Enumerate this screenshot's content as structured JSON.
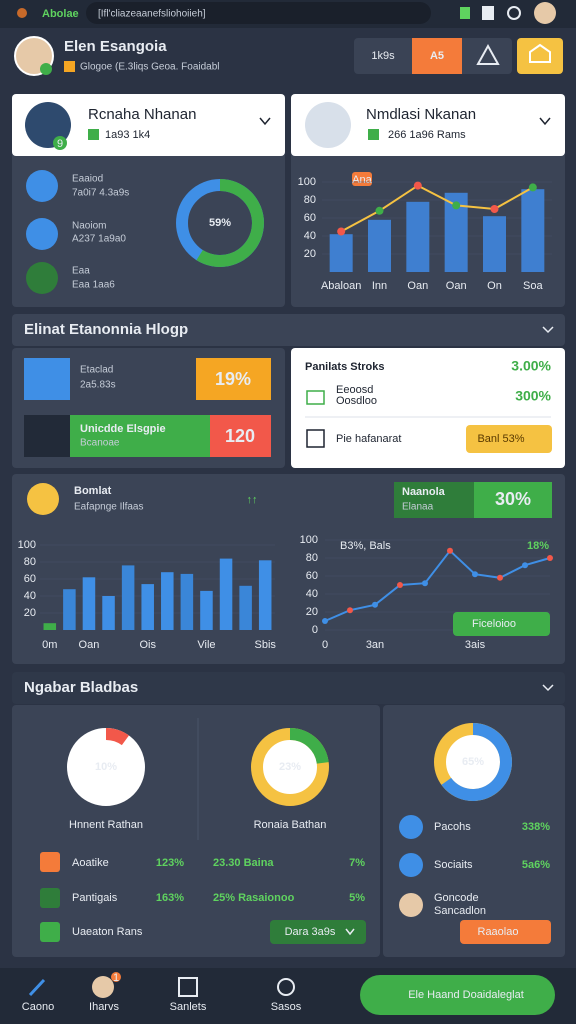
{
  "status_bar": {
    "app": "Abolae",
    "search": "[Ifl'cliazeaanefsliohoiieh]"
  },
  "header": {
    "name": "Elen Esangoia",
    "subtitle": "Glogoe (E.3liqs Geoa. Foaidabl",
    "buttons": [
      "1k9s",
      "A5"
    ]
  },
  "profile_cards": [
    {
      "name": "Rcnaha Nhanan",
      "meta": "1a93 1k4",
      "badge": "9",
      "items": [
        {
          "title": "Eaaiod",
          "detail": "7a0i7 4.3a9s"
        },
        {
          "title": "Naoiom",
          "detail": "A237 1a9a0"
        },
        {
          "title": "Eaa",
          "detail": "Eaa 1aa6"
        }
      ],
      "donut": {
        "value": 59,
        "label": "59%"
      }
    },
    {
      "name": "Nmdlasi Nkanan",
      "meta": "266 1a96 Rams",
      "chart": {
        "badge": "Ana",
        "categories": [
          "Abaloan",
          "Inn",
          "Oan",
          "Oan",
          "On",
          "Soa"
        ],
        "bars": [
          42,
          58,
          78,
          88,
          62,
          92
        ],
        "line": [
          45,
          68,
          96,
          74,
          70,
          94
        ],
        "ylim": [
          0,
          100
        ],
        "yticks": [
          20,
          40,
          60,
          80,
          100
        ]
      }
    }
  ],
  "section_1": {
    "title": "Elinat Etanonnia Hlogp",
    "tiles": [
      {
        "title": "Etaclad",
        "detail": "2a5.83s",
        "value": "19%"
      },
      {
        "title": "Unicdde Elsgpie",
        "detail": "Bcanoae",
        "value": "120"
      }
    ],
    "stocks": {
      "title": "Panilats Stroks",
      "title_value": "3.00%",
      "item": "Eeoosd",
      "item_detail": "Oosdloo",
      "item_value": "300%",
      "footer": "Pie hafanarat",
      "button": "Banl 53%"
    }
  },
  "activity": {
    "name": "Bomlat",
    "subtitle": "Eafapnge Ilfaas",
    "trend": "↑↑",
    "highlight": {
      "title": "Naanola",
      "detail": "Elanaa",
      "value": "30%"
    },
    "bar_chart": {
      "categories": [
        "0m",
        null,
        "Oan",
        null,
        null,
        "Ois",
        null,
        null,
        "Vile",
        null,
        null,
        "Sbis"
      ],
      "values": [
        8,
        48,
        62,
        40,
        76,
        54,
        68,
        66,
        46,
        84,
        52,
        82
      ],
      "ylim": [
        0,
        100
      ],
      "yticks": [
        20,
        40,
        60,
        80,
        100
      ]
    },
    "line_chart": {
      "label": "B3%, Bals",
      "end_label": "18%",
      "categories": [
        "0",
        null,
        "3an",
        null,
        null,
        null,
        "3ais",
        null,
        null,
        null
      ],
      "values": [
        10,
        22,
        28,
        50,
        52,
        88,
        62,
        58,
        72,
        80
      ],
      "ylim": [
        0,
        100
      ],
      "yticks": [
        0,
        20,
        40,
        60,
        80,
        100
      ],
      "button": "Ficeloioo"
    }
  },
  "section_2": {
    "title": "Ngabar Bladbas",
    "donuts": [
      {
        "value": 10,
        "label": "10%",
        "caption": "Hnnent Rathan"
      },
      {
        "value": 23,
        "label": "23%",
        "caption": "Ronaia Bathan"
      }
    ],
    "rows": [
      {
        "name": "Aoatike",
        "value": "123%"
      },
      {
        "name": "Pantigais",
        "value": "163%"
      },
      {
        "name": "Uaeaton Rans"
      }
    ],
    "mid_rows": [
      {
        "name": "23.30 Baina",
        "value": "7%"
      },
      {
        "name": "25% Rasaionoo",
        "value": "5%"
      }
    ],
    "button": "Dara 3a9s",
    "side": {
      "donut": {
        "value": 65,
        "label": "65%"
      },
      "rows": [
        {
          "name": "Pacohs",
          "value": "338%"
        },
        {
          "name": "Sociaits",
          "value": "5a6%"
        },
        {
          "name": "Goncode",
          "detail": "Sancadlon"
        }
      ],
      "button": "Raaolao"
    }
  },
  "nav": {
    "items": [
      "Caono",
      "Iharvs",
      "Sanlets",
      "Sasos"
    ],
    "badge": "1",
    "action": "Ele Haand Doaidaleglat"
  }
}
